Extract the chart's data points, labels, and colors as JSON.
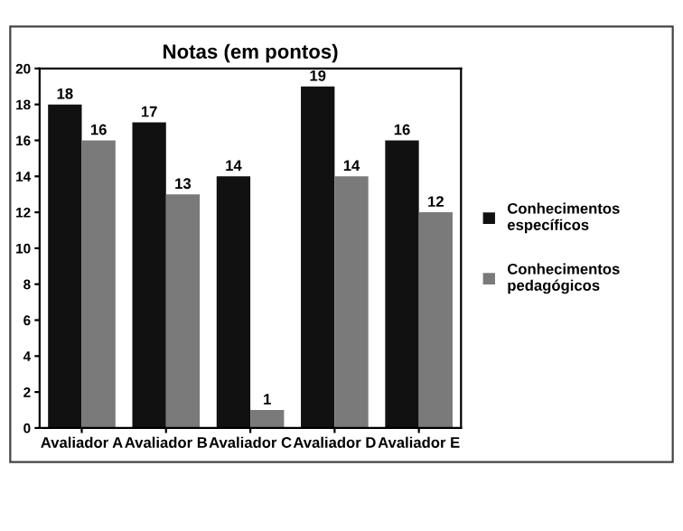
{
  "chart_data": {
    "type": "bar",
    "title": "Notas (em pontos)",
    "categories": [
      "Avaliador A",
      "Avaliador B",
      "Avaliador C",
      "Avaliador D",
      "Avaliador E"
    ],
    "series": [
      {
        "name": "Conhecimentos específicos",
        "color": "#111111",
        "values": [
          18,
          17,
          14,
          19,
          16
        ]
      },
      {
        "name": "Conhecimentos pedagógicos",
        "color": "#7a7a7a",
        "values": [
          16,
          13,
          1,
          14,
          12
        ]
      }
    ],
    "ylim": [
      0,
      20
    ],
    "yticks": [
      0,
      2,
      4,
      6,
      8,
      10,
      12,
      14,
      16,
      18,
      20
    ],
    "data_labels": true,
    "legend": "right",
    "grid": false
  }
}
